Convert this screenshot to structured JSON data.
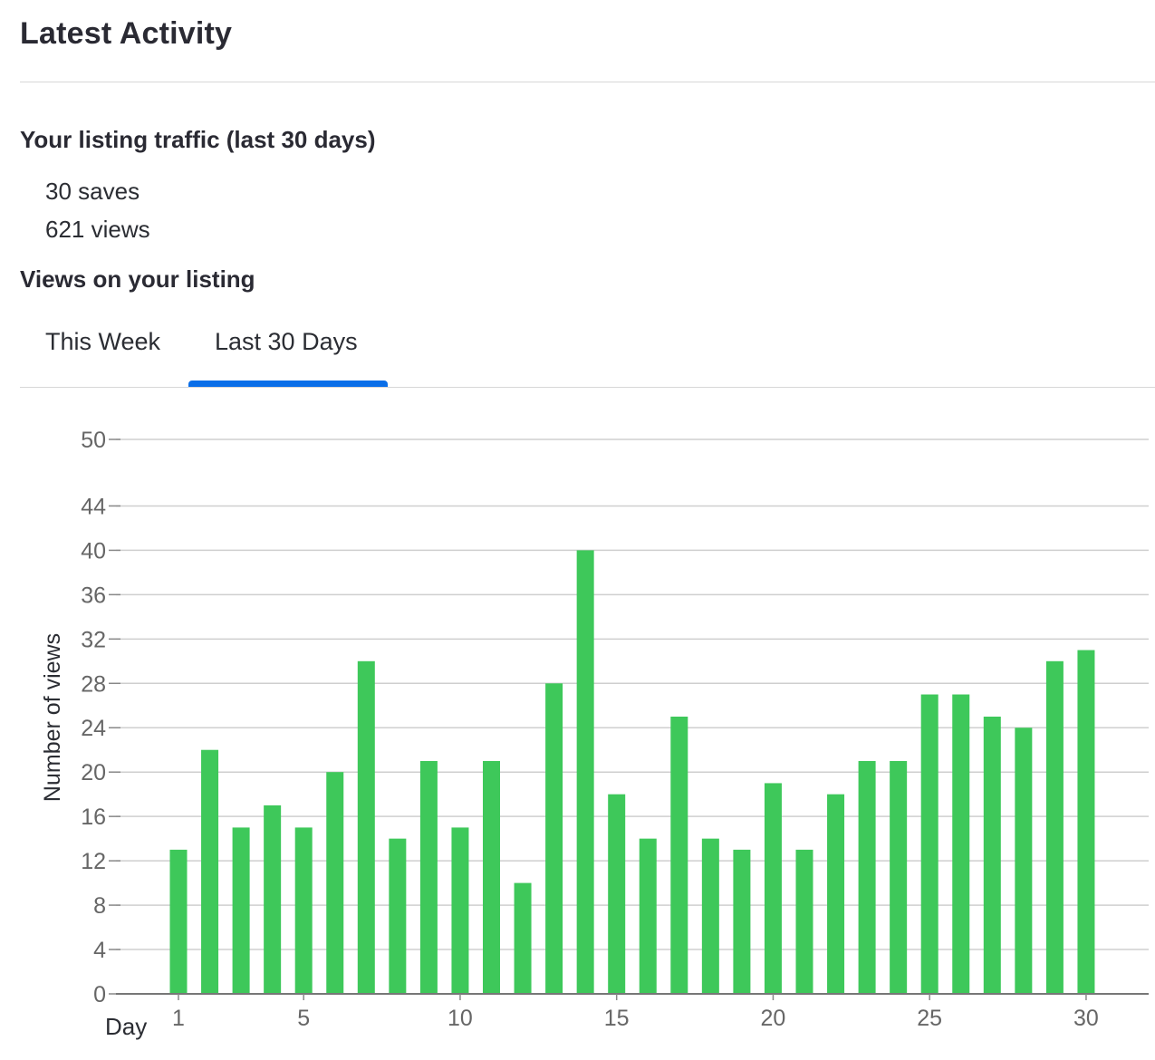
{
  "header": {
    "title": "Latest Activity"
  },
  "traffic": {
    "heading": "Your listing traffic (last 30 days)",
    "saves": "30 saves",
    "views": "621 views"
  },
  "views_section": {
    "heading": "Views on your listing",
    "tabs": [
      {
        "label": "This Week",
        "active": false
      },
      {
        "label": "Last 30 Days",
        "active": true
      }
    ]
  },
  "colors": {
    "bar": "#3ec85a",
    "tab_active": "#0a6ee8",
    "grid": "#cfcfcf",
    "text": "#2b2d33",
    "axis_text": "#666666"
  },
  "chart_data": {
    "type": "bar",
    "title": "",
    "xlabel": "Day",
    "ylabel": "Number of views",
    "categories": [
      1,
      2,
      3,
      4,
      5,
      6,
      7,
      8,
      9,
      10,
      11,
      12,
      13,
      14,
      15,
      16,
      17,
      18,
      19,
      20,
      21,
      22,
      23,
      24,
      25,
      26,
      27,
      28,
      29,
      30
    ],
    "values": [
      13,
      22,
      15,
      17,
      15,
      20,
      30,
      14,
      21,
      15,
      21,
      10,
      28,
      40,
      18,
      14,
      25,
      14,
      13,
      19,
      13,
      18,
      21,
      21,
      27,
      27,
      25,
      24,
      30,
      31
    ],
    "x_ticks": [
      "1",
      "5",
      "10",
      "15",
      "20",
      "25",
      "30"
    ],
    "y_ticks": [
      "0",
      "4",
      "8",
      "12",
      "16",
      "20",
      "24",
      "28",
      "32",
      "36",
      "40",
      "44",
      "50"
    ],
    "ylim": [
      0,
      50
    ],
    "grid": true
  }
}
